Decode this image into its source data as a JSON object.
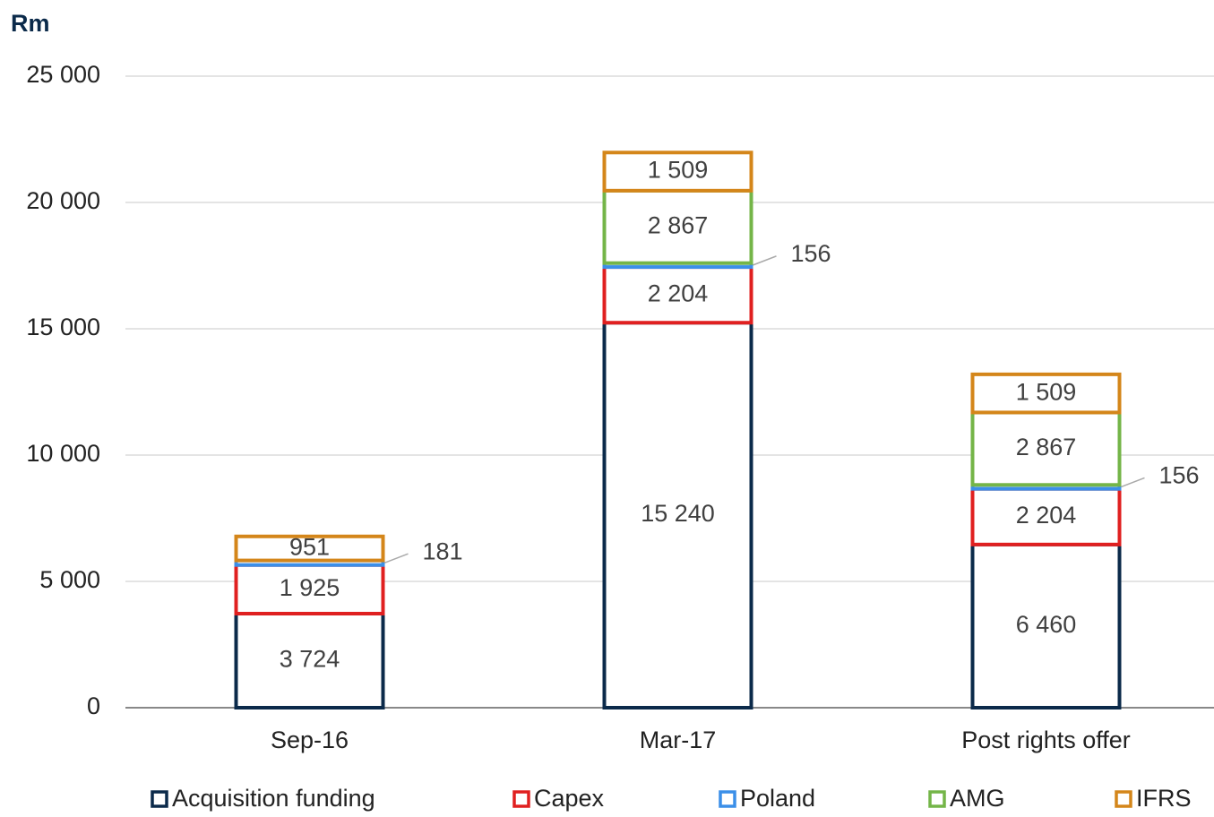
{
  "chart_data": {
    "type": "bar",
    "stacked": true,
    "title": "Rm",
    "categories": [
      "Sep-16",
      "Mar-17",
      "Post rights offer"
    ],
    "series": [
      {
        "name": "Acquisition funding",
        "color": "#0b2a4a",
        "values": [
          3724,
          15240,
          6460
        ],
        "value_labels": [
          "3 724",
          "15 240",
          "6 460"
        ]
      },
      {
        "name": "Capex",
        "color": "#e02020",
        "values": [
          1925,
          2204,
          2204
        ],
        "value_labels": [
          "1 925",
          "2 204",
          "2 204"
        ]
      },
      {
        "name": "Poland",
        "color": "#3b8fe8",
        "values": [
          181,
          156,
          156
        ],
        "value_labels": [
          "181",
          "156",
          "156"
        ]
      },
      {
        "name": "AMG",
        "color": "#74b548",
        "values": [
          null,
          2867,
          2867
        ],
        "value_labels": [
          null,
          "2 867",
          "2 867"
        ]
      },
      {
        "name": "IFRS",
        "color": "#d4861a",
        "values": [
          951,
          1509,
          1509
        ],
        "value_labels": [
          "951",
          "1 509",
          "1 509"
        ]
      }
    ],
    "ylim": [
      0,
      25000
    ],
    "yticks": [
      0,
      {
        "value": 5000,
        "label": "5 000"
      },
      {
        "value": 10000,
        "label": "10 000"
      },
      {
        "value": 15000,
        "label": "15 000"
      },
      {
        "value": 20000,
        "label": "20 000"
      },
      {
        "value": 25000,
        "label": "25 000"
      }
    ],
    "grid": true
  }
}
